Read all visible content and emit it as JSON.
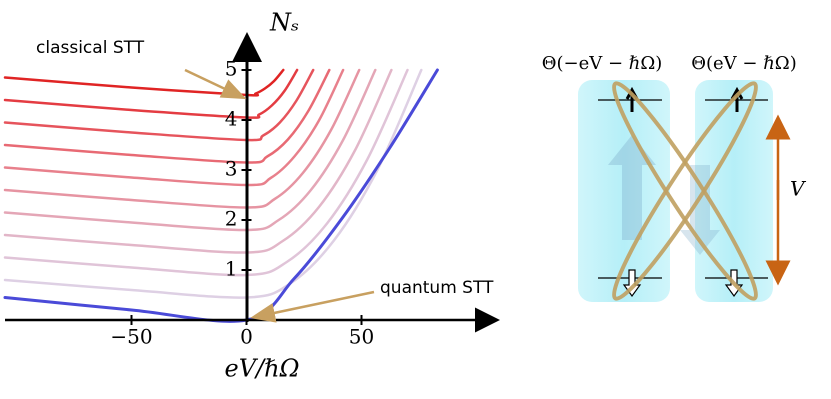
{
  "chart_data": {
    "type": "line",
    "xlabel": "eV/ℏΩ",
    "ylabel": "Nₛ",
    "annotations": [
      "classical STT",
      "quantum STT"
    ],
    "xlim": [
      -105,
      105
    ],
    "xticks": [
      {
        "value": -50,
        "label": "−50"
      },
      0,
      50
    ],
    "ylim": [
      0,
      5.6
    ],
    "yticks": [
      1,
      2,
      3,
      4,
      5
    ],
    "series": [
      {
        "color": "#4a4ad8",
        "x": [
          -105,
          -50,
          0,
          20.75,
          41.5,
          62.25,
          83
        ],
        "values": [
          0.45,
          0.2,
          0,
          0.83,
          2.03,
          3.44,
          5
        ]
      },
      {
        "color": "#ded0e4",
        "x": [
          -105,
          -50,
          0,
          19,
          38,
          57,
          76
        ],
        "values": [
          0.8,
          0.6,
          0.45,
          0.73,
          1.59,
          3.01,
          5
        ]
      },
      {
        "color": "#e0c4d8",
        "x": [
          -105,
          -50,
          0,
          17.5,
          35,
          52.5,
          70
        ],
        "values": [
          1.25,
          1.05,
          0.9,
          1.16,
          1.93,
          3.21,
          5
        ]
      },
      {
        "color": "#e2b6c8",
        "x": [
          -105,
          -50,
          0,
          15.75,
          31.5,
          47.25,
          63
        ],
        "values": [
          1.7,
          1.5,
          1.35,
          1.58,
          2.26,
          3.4,
          5
        ]
      },
      {
        "color": "#e4a6b6",
        "x": [
          -105,
          -50,
          0,
          14,
          28,
          42,
          56
        ],
        "values": [
          2.15,
          1.95,
          1.8,
          2.0,
          2.6,
          3.6,
          5
        ]
      },
      {
        "color": "#e694a2",
        "x": [
          -105,
          -50,
          0,
          12.25,
          24.5,
          36.75,
          49
        ],
        "values": [
          2.6,
          2.4,
          2.25,
          2.42,
          2.94,
          3.8,
          5
        ]
      },
      {
        "color": "#e8808c",
        "x": [
          -105,
          -50,
          0,
          10.5,
          21,
          31.5,
          42
        ],
        "values": [
          3.05,
          2.85,
          2.7,
          2.84,
          3.28,
          3.99,
          5
        ]
      },
      {
        "color": "#e86a74",
        "x": [
          -105,
          -50,
          0,
          9,
          18,
          27,
          36
        ],
        "values": [
          3.5,
          3.3,
          3.15,
          3.27,
          3.61,
          4.19,
          5
        ]
      },
      {
        "color": "#e6545c",
        "x": [
          -105,
          -50,
          0,
          7.25,
          14.5,
          21.75,
          29
        ],
        "values": [
          3.95,
          3.75,
          3.6,
          3.69,
          3.95,
          4.39,
          5
        ]
      },
      {
        "color": "#e43c42",
        "x": [
          -105,
          -50,
          0,
          5.5,
          11,
          16.5,
          22
        ],
        "values": [
          4.4,
          4.2,
          4.05,
          4.11,
          4.29,
          4.58,
          5
        ]
      },
      {
        "color": "#e02424",
        "x": [
          -105,
          -50,
          0,
          4,
          8,
          12,
          16
        ],
        "values": [
          4.85,
          4.65,
          4.5,
          4.53,
          4.63,
          4.78,
          5
        ]
      }
    ]
  },
  "diagram": {
    "labels": [
      "Θ(−eV − ℏΩ)",
      "Θ(eV − ℏΩ)"
    ],
    "voltage_label": "V"
  }
}
